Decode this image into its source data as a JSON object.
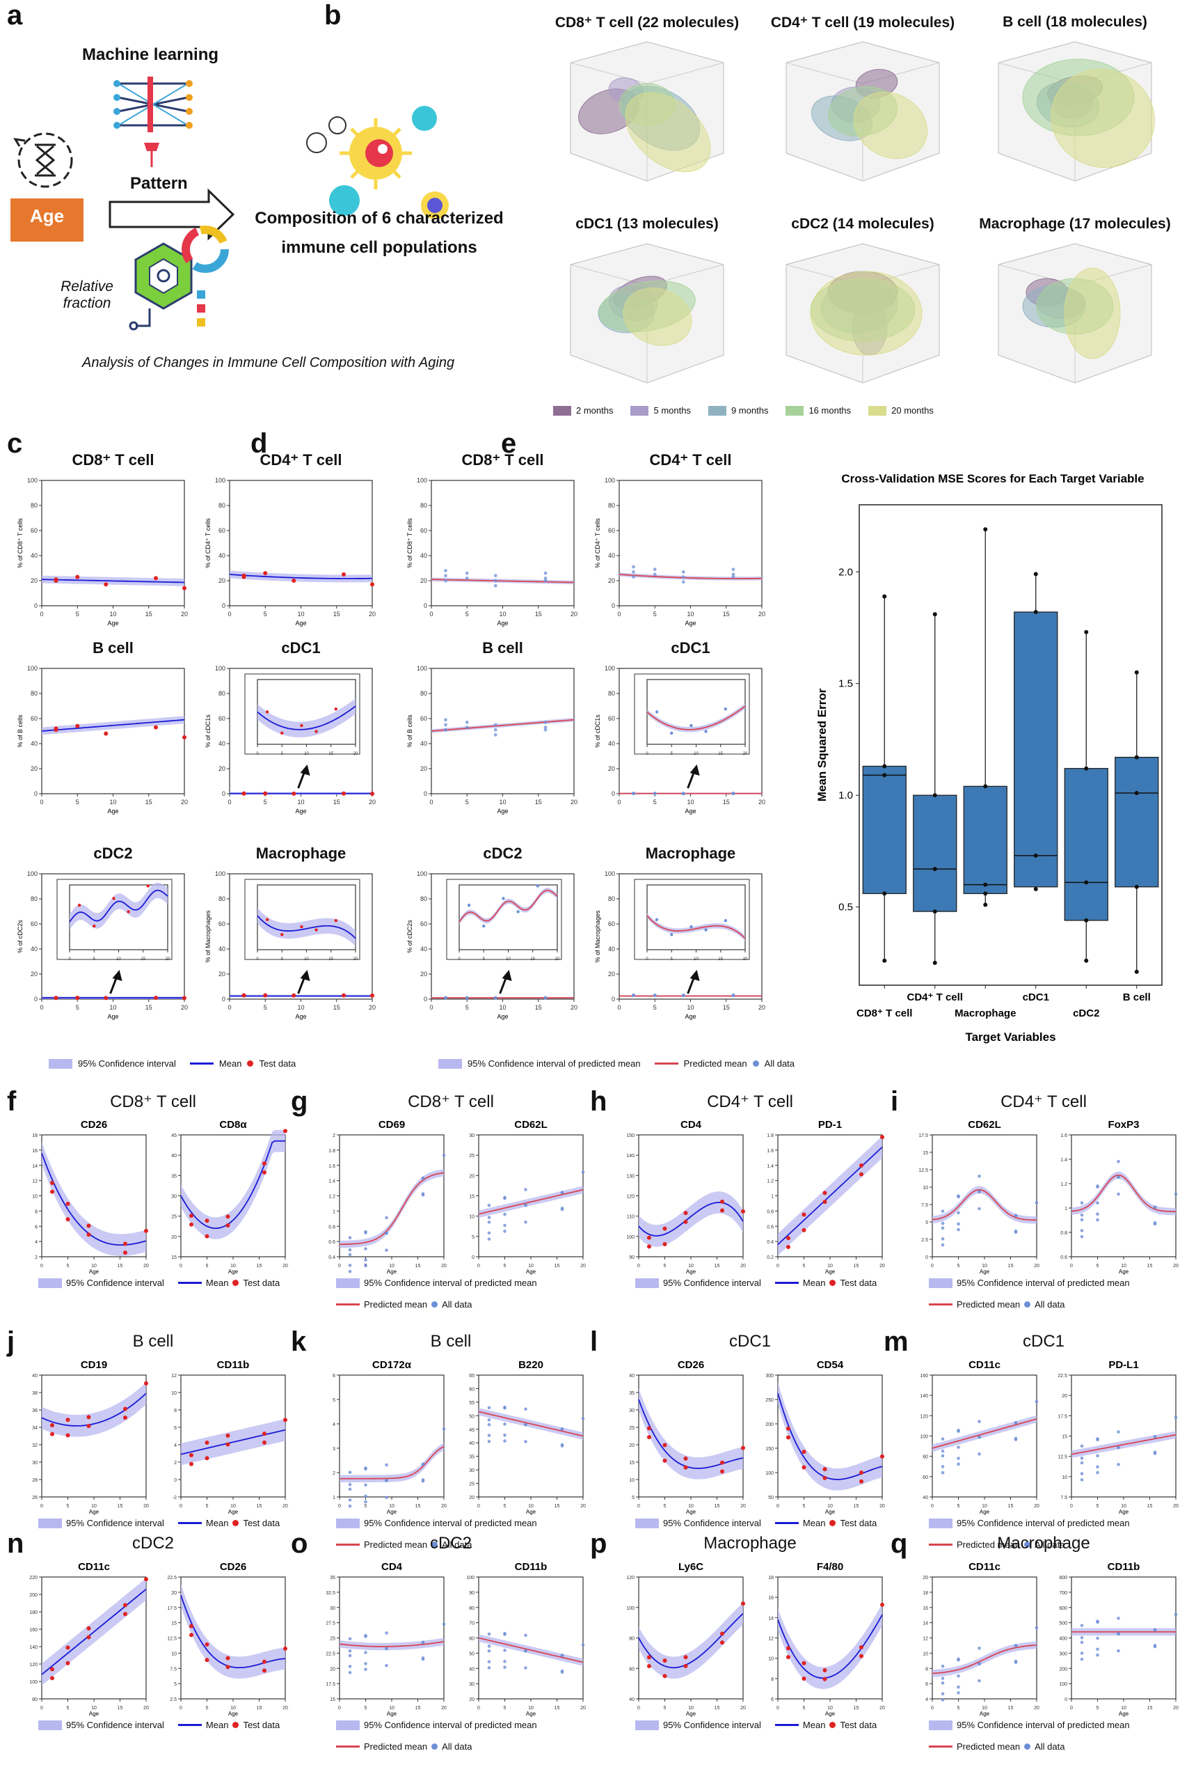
{
  "panel_labels": [
    "a",
    "b",
    "c",
    "d",
    "e",
    "f",
    "g",
    "h",
    "i",
    "j",
    "k",
    "l",
    "m",
    "n",
    "o",
    "p",
    "q"
  ],
  "panel_a": {
    "age": "Age",
    "ml": "Machine learning",
    "pattern": "Pattern",
    "relative_fraction": "Relative\nfraction",
    "composition_line1": "Composition of 6 characterized",
    "composition_line2": "immune cell populations",
    "caption": "Analysis of Changes in Immune Cell Composition with Aging",
    "colors": {
      "age_box": "#e6782e"
    }
  },
  "panel_b": {
    "titles": [
      "CD8⁺ T cell (22 molecules)",
      "CD4⁺ T cell (19 molecules)",
      "B cell (18 molecules)",
      "cDC1 (13 molecules)",
      "cDC2 (14 molecules)",
      "Macrophage (17 molecules)"
    ],
    "legend": [
      {
        "label": "2 months",
        "color": "#8e6f93"
      },
      {
        "label": "5 months",
        "color": "#a99cc8"
      },
      {
        "label": "9 months",
        "color": "#8fb1c0"
      },
      {
        "label": "16 months",
        "color": "#a6d29a"
      },
      {
        "label": "20 months",
        "color": "#d8dc8c"
      }
    ]
  },
  "panel_c": {
    "titles": [
      "CD8⁺ T cell",
      "CD4⁺ T cell",
      "B cell",
      "cDC1",
      "cDC2",
      "Macrophage"
    ],
    "ylabels": [
      "% of CD8⁺ T cells",
      "% of CD4⁺ T cells",
      "% of B cells",
      "% of cDC1s",
      "% of cDC2s",
      "% of Macrophages"
    ],
    "xlabel": "Age",
    "legend": {
      "ci": "95% Confidence interval",
      "mean": "Mean",
      "test": "Test data"
    }
  },
  "panel_d": {
    "titles": [
      "CD8⁺ T cell",
      "CD4⁺ T cell",
      "B cell",
      "cDC1",
      "cDC2",
      "Macrophage"
    ],
    "ylabels": [
      "% of CD8⁺ T cells",
      "% of CD4⁺ T cells",
      "% of B cells",
      "% of cDC1s",
      "% of cDC2s",
      "% of Macrophages"
    ],
    "xlabel": "Age",
    "legend": {
      "ci": "95% Confidence interval of predicted mean",
      "mean": "Predicted mean",
      "all": "All data"
    }
  },
  "panel_e": {
    "chart_data": {
      "type": "box",
      "title": "Cross-Validation MSE Scores for Each Target Variable",
      "xlabel": "Target Variables",
      "ylabel": "Mean Squared Error",
      "ylim": [
        0.15,
        2.3
      ],
      "yticks": [
        0.5,
        1.0,
        1.5,
        2.0
      ],
      "categories": [
        "CD8⁺ T cell",
        "CD4⁺ T cell",
        "Macrophage",
        "cDC1",
        "cDC2",
        "B cell"
      ],
      "boxes": [
        {
          "q1": 0.56,
          "median": 1.09,
          "q3": 1.13,
          "min": 0.26,
          "max": 1.89,
          "points": [
            0.26,
            0.56,
            1.09,
            1.13,
            1.89
          ]
        },
        {
          "q1": 0.48,
          "median": 0.67,
          "q3": 1.0,
          "min": 0.25,
          "max": 1.81,
          "points": [
            0.25,
            0.48,
            0.67,
            1.0,
            1.81
          ]
        },
        {
          "q1": 0.56,
          "median": 0.6,
          "q3": 1.04,
          "min": 0.51,
          "max": 2.19,
          "points": [
            0.51,
            0.56,
            0.6,
            1.04,
            2.19
          ]
        },
        {
          "q1": 0.59,
          "median": 0.73,
          "q3": 1.82,
          "min": 0.58,
          "max": 1.99,
          "points": [
            0.58,
            0.73,
            1.82,
            1.99
          ]
        },
        {
          "q1": 0.44,
          "median": 0.61,
          "q3": 1.12,
          "min": 0.26,
          "max": 1.73,
          "points": [
            0.26,
            0.44,
            0.61,
            1.12,
            1.73
          ]
        },
        {
          "q1": 0.59,
          "median": 1.01,
          "q3": 1.17,
          "min": 0.21,
          "max": 1.55,
          "points": [
            0.21,
            0.59,
            1.01,
            1.17,
            1.55
          ]
        }
      ],
      "color": "#3d7ab5"
    }
  },
  "bottom": {
    "cells": [
      "CD8⁺ T cell",
      "CD8⁺ T cell",
      "CD4⁺ T cell",
      "CD4⁺ T cell",
      "B cell",
      "B cell",
      "cDC1",
      "cDC1",
      "cDC2",
      "cDC2",
      "Macrophage",
      "Macrophage"
    ],
    "markers": [
      [
        "CD26",
        "CD8α"
      ],
      [
        "CD69",
        "CD62L"
      ],
      [
        "CD4",
        "PD-1"
      ],
      [
        "CD62L",
        "FoxP3"
      ],
      [
        "CD19",
        "CD11b"
      ],
      [
        "CD172α",
        "B220"
      ],
      [
        "CD26",
        "CD54"
      ],
      [
        "CD11c",
        "PD-L1"
      ],
      [
        "CD11c",
        "CD26"
      ],
      [
        "CD4",
        "CD11b"
      ],
      [
        "Ly6C",
        "F4/80"
      ],
      [
        "CD11c",
        "CD11b"
      ]
    ],
    "xlabel": "Age",
    "legend_test": {
      "ci": "95% Confidence interval",
      "mean": "Mean",
      "test": "Test data"
    },
    "legend_all": {
      "ci": "95% Confidence interval of predicted mean",
      "mean": "Predicted mean",
      "all": "All data"
    }
  },
  "colors": {
    "band": "#b8b8f0",
    "mean_blue": "#1a1ad6",
    "test_red": "#e02222",
    "pred_red": "#d94450",
    "all_blue": "#6d8fd6",
    "box": "#3d7ab5"
  }
}
